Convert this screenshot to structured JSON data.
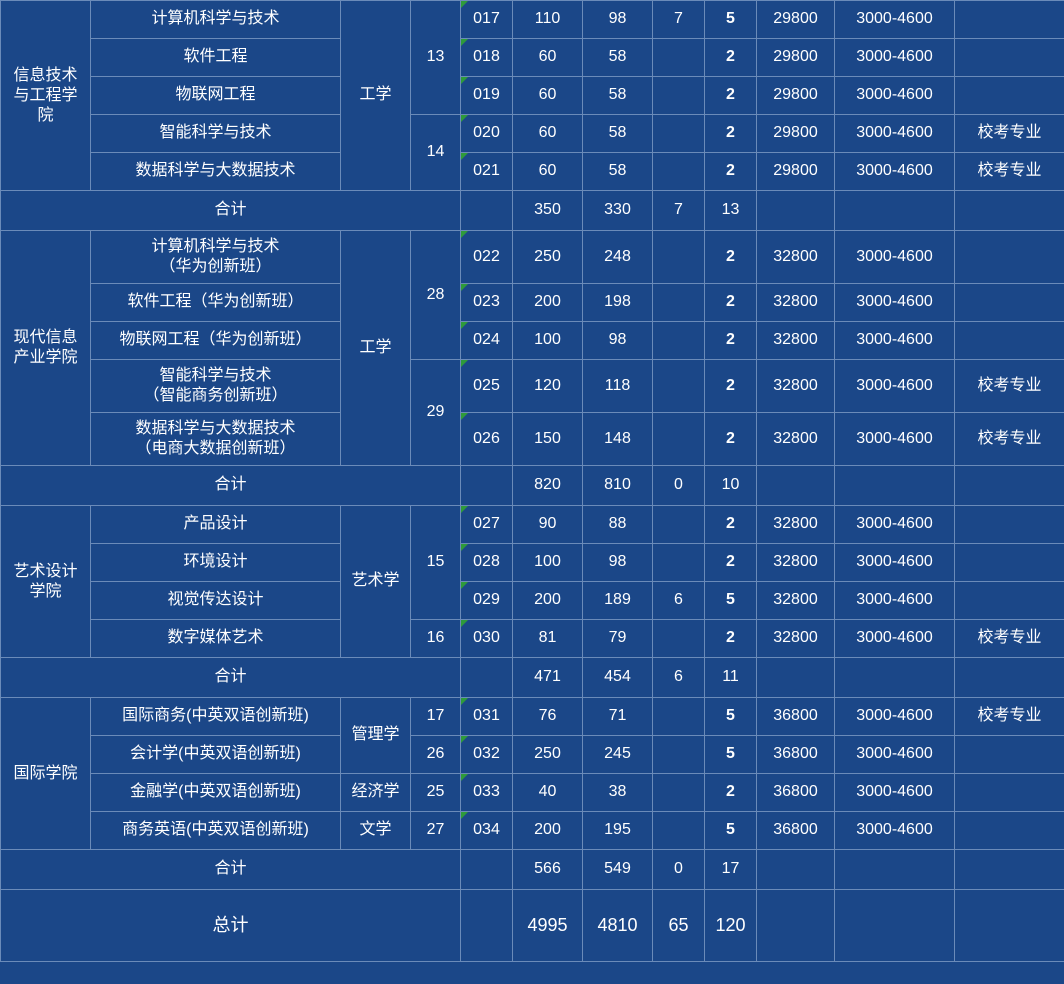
{
  "colors": {
    "bg": "#1b4788",
    "border": "#6b8bb9",
    "text": "#ffffff",
    "corner": "#2e9b3a"
  },
  "labels": {
    "subtotal": "合计",
    "grandtotal": "总计"
  },
  "sections": [
    {
      "college": "信息技术与工程学院",
      "discipline": "工学",
      "group_codes": [
        "13",
        "14"
      ],
      "rows": [
        {
          "major": "计算机科学与技术",
          "g": "13",
          "code": "017",
          "a": "110",
          "b": "98",
          "c": "7",
          "d": "5",
          "fee": "29800",
          "dorm": "3000-4600",
          "note": ""
        },
        {
          "major": "软件工程",
          "g": "13",
          "code": "018",
          "a": "60",
          "b": "58",
          "c": "",
          "d": "2",
          "fee": "29800",
          "dorm": "3000-4600",
          "note": ""
        },
        {
          "major": "物联网工程",
          "g": "13",
          "code": "019",
          "a": "60",
          "b": "58",
          "c": "",
          "d": "2",
          "fee": "29800",
          "dorm": "3000-4600",
          "note": ""
        },
        {
          "major": "智能科学与技术",
          "g": "14",
          "code": "020",
          "a": "60",
          "b": "58",
          "c": "",
          "d": "2",
          "fee": "29800",
          "dorm": "3000-4600",
          "note": "校考专业"
        },
        {
          "major": "数据科学与大数据技术",
          "g": "14",
          "code": "021",
          "a": "60",
          "b": "58",
          "c": "",
          "d": "2",
          "fee": "29800",
          "dorm": "3000-4600",
          "note": "校考专业"
        }
      ],
      "subtotal": {
        "a": "350",
        "b": "330",
        "c": "7",
        "d": "13"
      }
    },
    {
      "college": "现代信息产业学院",
      "discipline": "工学",
      "group_codes": [
        "28",
        "29"
      ],
      "rows": [
        {
          "major": "计算机科学与技术\n（华为创新班）",
          "g": "28",
          "code": "022",
          "a": "250",
          "b": "248",
          "c": "",
          "d": "2",
          "fee": "32800",
          "dorm": "3000-4600",
          "note": ""
        },
        {
          "major": "软件工程（华为创新班）",
          "g": "28",
          "code": "023",
          "a": "200",
          "b": "198",
          "c": "",
          "d": "2",
          "fee": "32800",
          "dorm": "3000-4600",
          "note": ""
        },
        {
          "major": "物联网工程（华为创新班）",
          "g": "28",
          "code": "024",
          "a": "100",
          "b": "98",
          "c": "",
          "d": "2",
          "fee": "32800",
          "dorm": "3000-4600",
          "note": ""
        },
        {
          "major": "智能科学与技术\n（智能商务创新班）",
          "g": "29",
          "code": "025",
          "a": "120",
          "b": "118",
          "c": "",
          "d": "2",
          "fee": "32800",
          "dorm": "3000-4600",
          "note": "校考专业"
        },
        {
          "major": "数据科学与大数据技术\n（电商大数据创新班）",
          "g": "29",
          "code": "026",
          "a": "150",
          "b": "148",
          "c": "",
          "d": "2",
          "fee": "32800",
          "dorm": "3000-4600",
          "note": "校考专业"
        }
      ],
      "subtotal": {
        "a": "820",
        "b": "810",
        "c": "0",
        "d": "10"
      }
    },
    {
      "college": "艺术设计学院",
      "discipline": "艺术学",
      "group_codes": [
        "15",
        "16"
      ],
      "rows": [
        {
          "major": "产品设计",
          "g": "15",
          "code": "027",
          "a": "90",
          "b": "88",
          "c": "",
          "d": "2",
          "fee": "32800",
          "dorm": "3000-4600",
          "note": ""
        },
        {
          "major": "环境设计",
          "g": "15",
          "code": "028",
          "a": "100",
          "b": "98",
          "c": "",
          "d": "2",
          "fee": "32800",
          "dorm": "3000-4600",
          "note": ""
        },
        {
          "major": "视觉传达设计",
          "g": "15",
          "code": "029",
          "a": "200",
          "b": "189",
          "c": "6",
          "d": "5",
          "fee": "32800",
          "dorm": "3000-4600",
          "note": ""
        },
        {
          "major": "数字媒体艺术",
          "g": "16",
          "code": "030",
          "a": "81",
          "b": "79",
          "c": "",
          "d": "2",
          "fee": "32800",
          "dorm": "3000-4600",
          "note": "校考专业"
        }
      ],
      "subtotal": {
        "a": "471",
        "b": "454",
        "c": "6",
        "d": "11"
      }
    },
    {
      "college": "国际学院",
      "discipline_per_row": true,
      "rows": [
        {
          "major": "国际商务(中英双语创新班)",
          "disc": "管理学",
          "disc_span": 2,
          "g": "17",
          "code": "031",
          "a": "76",
          "b": "71",
          "c": "",
          "d": "5",
          "fee": "36800",
          "dorm": "3000-4600",
          "note": "校考专业"
        },
        {
          "major": "会计学(中英双语创新班)",
          "disc": "",
          "g": "26",
          "code": "032",
          "a": "250",
          "b": "245",
          "c": "",
          "d": "5",
          "fee": "36800",
          "dorm": "3000-4600",
          "note": ""
        },
        {
          "major": "金融学(中英双语创新班)",
          "disc": "经济学",
          "g": "25",
          "code": "033",
          "a": "40",
          "b": "38",
          "c": "",
          "d": "2",
          "fee": "36800",
          "dorm": "3000-4600",
          "note": ""
        },
        {
          "major": "商务英语(中英双语创新班)",
          "disc": "文学",
          "g": "27",
          "code": "034",
          "a": "200",
          "b": "195",
          "c": "",
          "d": "5",
          "fee": "36800",
          "dorm": "3000-4600",
          "note": ""
        }
      ],
      "subtotal": {
        "a": "566",
        "b": "549",
        "c": "0",
        "d": "17"
      }
    }
  ],
  "grandtotal": {
    "a": "4995",
    "b": "4810",
    "c": "65",
    "d": "120"
  }
}
